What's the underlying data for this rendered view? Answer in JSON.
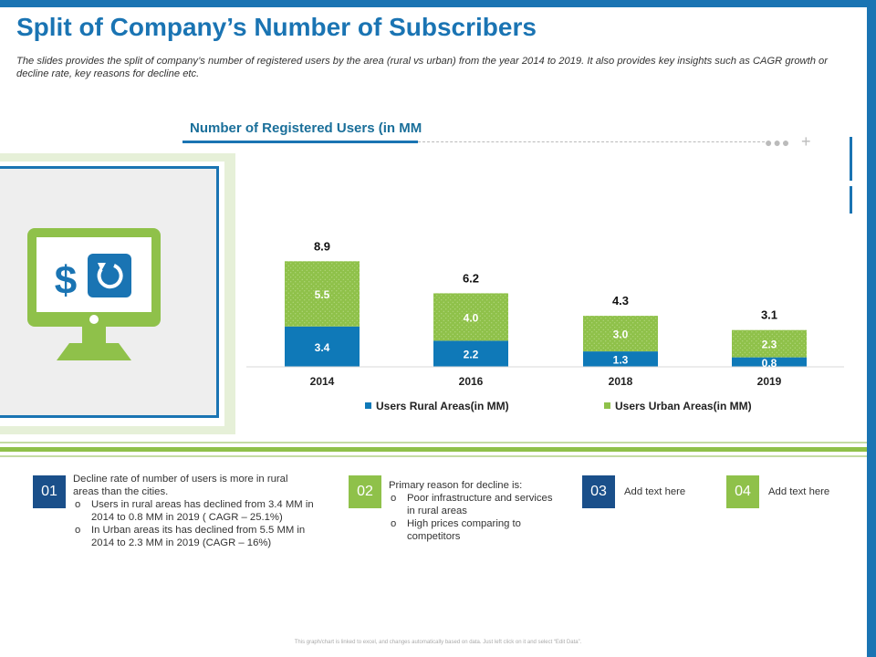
{
  "title": "Split of Company’s Number of Subscribers",
  "subtitle": "The slides provides the split of company’s number of registered users by the area (rural vs urban) from the year 2014 to 2019. It also provides key insights such as CAGR growth or decline rate, key reasons for decline etc.",
  "colors": {
    "accent": "#1a74b3",
    "rural": "#0f79b8",
    "urban": "#8fc14a",
    "dark_blue": "#1a4f8a"
  },
  "icon_panel": {
    "icon": "monitor-dollar-refresh-icon"
  },
  "chart_data": {
    "type": "bar",
    "stacked": true,
    "title": "Number of Registered Users (in MM",
    "categories": [
      "2014",
      "2016",
      "2018",
      "2019"
    ],
    "series": [
      {
        "name": "Users  Rural Areas(in MM)",
        "values": [
          3.4,
          2.2,
          1.3,
          0.8
        ],
        "color": "#0f79b8"
      },
      {
        "name": "Users  Urban Areas(in MM)",
        "values": [
          5.5,
          4.0,
          3.0,
          2.3
        ],
        "color": "#8fc14a"
      }
    ],
    "totals": [
      8.9,
      6.2,
      4.3,
      3.1
    ],
    "value_labels": {
      "rural": [
        "3.4",
        "2.2",
        "1.3",
        "0.8"
      ],
      "urban": [
        "5.5",
        "4.0",
        "3.0",
        "2.3"
      ],
      "totals": [
        "8.9",
        "6.2",
        "4.3",
        "3.1"
      ]
    },
    "xlabel": "",
    "ylabel": "",
    "ylim": [
      0,
      10
    ],
    "legend": "bottom"
  },
  "points": [
    {
      "num": "01",
      "lead": "Decline rate of number of users is more in rural areas than the cities.",
      "bullets": [
        "Users in rural areas has declined from 3.4 MM  in 2014 to 0.8 MM  in 2019 ( CAGR – 25.1%)",
        "In Urban areas its has declined from 5.5 MM in 2014 to 2.3 MM in 2019 (CAGR – 16%)"
      ]
    },
    {
      "num": "02",
      "lead": "Primary reason for decline is:",
      "bullets": [
        "Poor infrastructure and services in rural areas",
        "High prices comparing to competitors"
      ]
    },
    {
      "num": "03",
      "lead": "Add text here"
    },
    {
      "num": "04",
      "lead": "Add text here"
    }
  ],
  "footnote": "This graph/chart is linked to excel, and changes automatically based on data. Just left click on it and select “Edit Data”."
}
